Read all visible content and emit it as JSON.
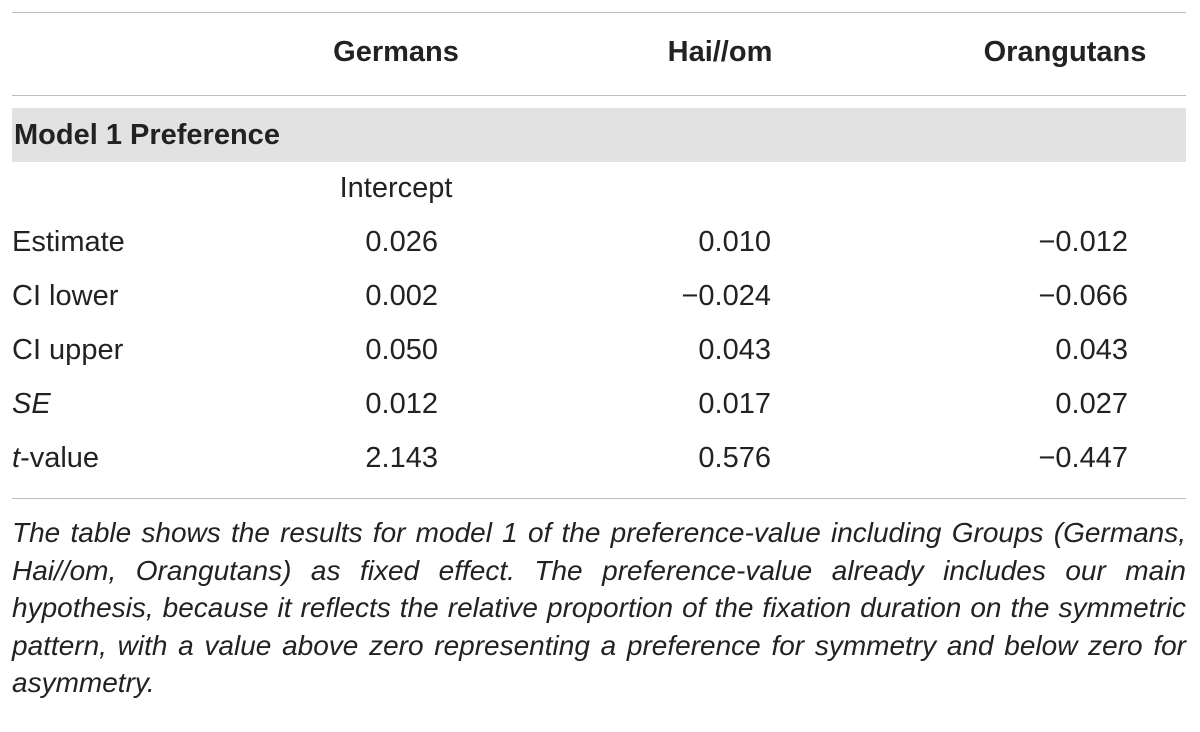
{
  "table": {
    "columns": [
      "Germans",
      "Hai//om",
      "Orangutans"
    ],
    "section": "Model 1 Preference",
    "subheader": "Intercept",
    "rows": [
      {
        "label": "Estimate",
        "values": [
          "0.026",
          "0.010",
          "−0.012"
        ]
      },
      {
        "label": "CI lower",
        "values": [
          "0.002",
          "−0.024",
          "−0.066"
        ]
      },
      {
        "label": "CI upper",
        "values": [
          "0.050",
          "0.043",
          "0.043"
        ]
      },
      {
        "label": "SE",
        "values": [
          "0.012",
          "0.017",
          "0.027"
        ]
      },
      {
        "label": "t-value",
        "values": [
          "2.143",
          "0.576",
          "−0.447"
        ]
      }
    ]
  },
  "caption": "The table shows the results for model 1 of the preference-value including Groups (Germans, Hai//om, Orangutans) as fixed effect. The preference-value already includes our main hypothesis, because it reflects the relative proportion of the fixation duration on the symmetric pattern, with a value above zero representing a preference for symmetry and below zero for asymmetry."
}
